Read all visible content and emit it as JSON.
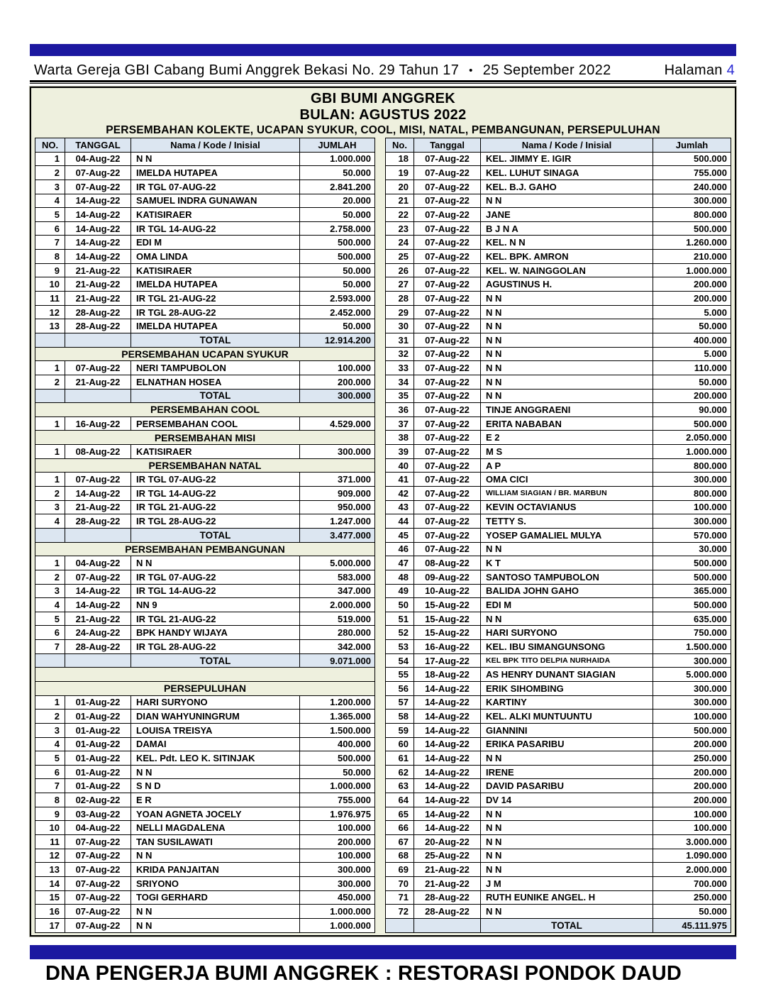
{
  "header": {
    "title": "Warta Gereja GBI Cabang Bumi Anggrek Bekasi No. 29  Tahun 17",
    "separator": "•",
    "date": "25 September 2022",
    "page_label": "Halaman",
    "page_number": "4"
  },
  "footer": {
    "text": "DNA PENGERJA BUMI ANGGREK : RESTORASI PONDOK DAUD"
  },
  "colors": {
    "bar_blue": "#1c18a0",
    "cream": "#eef0de",
    "light_blue": "#dce6f1",
    "page_number_blue": "#2a2ad4"
  },
  "table": {
    "title1": "GBI BUMI ANGGREK",
    "title2": "BULAN: AGUSTUS 2022",
    "title3": "PERSEMBAHAN KOLEKTE, UCAPAN SYUKUR, COOL, MISI, NATAL, PEMBANGUNAN, PERSEPULUHAN",
    "left_headers": [
      "NO.",
      "TANGGAL",
      "Nama / Kode / Inisial",
      "JUMLAH"
    ],
    "right_headers": [
      "No.",
      "Tanggal",
      "Nama / Kode / Inisial",
      "Jumlah"
    ],
    "left_rows": [
      [
        "d",
        "1",
        "04-Aug-22",
        "N N",
        "1.000.000"
      ],
      [
        "d",
        "2",
        "07-Aug-22",
        "IMELDA HUTAPEA",
        "50.000"
      ],
      [
        "d",
        "3",
        "07-Aug-22",
        "IR TGL 07-AUG-22",
        "2.841.200"
      ],
      [
        "d",
        "4",
        "14-Aug-22",
        "SAMUEL INDRA GUNAWAN",
        "20.000"
      ],
      [
        "d",
        "5",
        "14-Aug-22",
        "KATISIRAER",
        "50.000"
      ],
      [
        "d",
        "6",
        "14-Aug-22",
        "IR TGL 14-AUG-22",
        "2.758.000"
      ],
      [
        "d",
        "7",
        "14-Aug-22",
        "EDI M",
        "500.000"
      ],
      [
        "d",
        "8",
        "14-Aug-22",
        "OMA LINDA",
        "500.000"
      ],
      [
        "d",
        "9",
        "21-Aug-22",
        "KATISIRAER",
        "50.000"
      ],
      [
        "d",
        "10",
        "21-Aug-22",
        "IMELDA HUTAPEA",
        "50.000"
      ],
      [
        "d",
        "11",
        "21-Aug-22",
        "IR TGL 21-AUG-22",
        "2.593.000"
      ],
      [
        "d",
        "12",
        "28-Aug-22",
        "IR TGL 28-AUG-22",
        "2.452.000"
      ],
      [
        "d",
        "13",
        "28-Aug-22",
        "IMELDA HUTAPEA",
        "50.000"
      ],
      [
        "t",
        "TOTAL",
        "12.914.200"
      ],
      [
        "s",
        "PERSEMBAHAN UCAPAN SYUKUR"
      ],
      [
        "d",
        "1",
        "07-Aug-22",
        "NERI TAMPUBOLON",
        "100.000"
      ],
      [
        "d",
        "2",
        "21-Aug-22",
        "ELNATHAN HOSEA",
        "200.000"
      ],
      [
        "t",
        "TOTAL",
        "300.000"
      ],
      [
        "s",
        "PERSEMBAHAN COOL"
      ],
      [
        "d",
        "1",
        "16-Aug-22",
        "PERSEMBAHAN COOL",
        "4.529.000"
      ],
      [
        "s",
        "PERSEMBAHAN MISI"
      ],
      [
        "d",
        "1",
        "08-Aug-22",
        "KATISIRAER",
        "300.000"
      ],
      [
        "s",
        "PERSEMBAHAN NATAL"
      ],
      [
        "d",
        "1",
        "07-Aug-22",
        "IR TGL 07-AUG-22",
        "371.000"
      ],
      [
        "d",
        "2",
        "14-Aug-22",
        "IR TGL 14-AUG-22",
        "909.000"
      ],
      [
        "d",
        "3",
        "21-Aug-22",
        "IR TGL 21-AUG-22",
        "950.000"
      ],
      [
        "d",
        "4",
        "28-Aug-22",
        "IR TGL 28-AUG-22",
        "1.247.000"
      ],
      [
        "t",
        "TOTAL",
        "3.477.000"
      ],
      [
        "s",
        "PERSEMBAHAN PEMBANGUNAN"
      ],
      [
        "d",
        "1",
        "04-Aug-22",
        "N N",
        "5.000.000"
      ],
      [
        "d",
        "2",
        "07-Aug-22",
        "IR TGL 07-AUG-22",
        "583.000"
      ],
      [
        "d",
        "3",
        "14-Aug-22",
        "IR TGL 14-AUG-22",
        "347.000"
      ],
      [
        "d",
        "4",
        "14-Aug-22",
        "NN 9",
        "2.000.000"
      ],
      [
        "d",
        "5",
        "21-Aug-22",
        "IR TGL 21-AUG-22",
        "519.000"
      ],
      [
        "d",
        "6",
        "24-Aug-22",
        "BPK HANDY WIJAYA",
        "280.000"
      ],
      [
        "d",
        "7",
        "28-Aug-22",
        "IR TGL 28-AUG-22",
        "342.000"
      ],
      [
        "t",
        "TOTAL",
        "9.071.000"
      ],
      [
        "b"
      ],
      [
        "s",
        "PERSEPULUHAN"
      ],
      [
        "d",
        "1",
        "01-Aug-22",
        "HARI SURYONO",
        "1.200.000"
      ],
      [
        "d",
        "2",
        "01-Aug-22",
        "DIAN WAHYUNINGRUM",
        "1.365.000"
      ],
      [
        "d",
        "3",
        "01-Aug-22",
        "LOUISA TREISYA",
        "1.500.000"
      ],
      [
        "d",
        "4",
        "01-Aug-22",
        "DAMAI",
        "400.000"
      ],
      [
        "d",
        "5",
        "01-Aug-22",
        "KEL. Pdt. LEO K. SITINJAK",
        "500.000"
      ],
      [
        "d",
        "6",
        "01-Aug-22",
        "N N",
        "50.000"
      ],
      [
        "d",
        "7",
        "01-Aug-22",
        "S N D",
        "1.000.000"
      ],
      [
        "d",
        "8",
        "02-Aug-22",
        "E R",
        "755.000"
      ],
      [
        "d",
        "9",
        "03-Aug-22",
        "YOAN AGNETA JOCELY",
        "1.976.975"
      ],
      [
        "d",
        "10",
        "04-Aug-22",
        "NELLI MAGDALENA",
        "100.000"
      ],
      [
        "d",
        "11",
        "07-Aug-22",
        "TAN SUSILAWATI",
        "200.000"
      ],
      [
        "d",
        "12",
        "07-Aug-22",
        "N N",
        "100.000"
      ],
      [
        "d",
        "13",
        "07-Aug-22",
        "KRIDA PANJAITAN",
        "300.000"
      ],
      [
        "d",
        "14",
        "07-Aug-22",
        "SRIYONO",
        "300.000"
      ],
      [
        "d",
        "15",
        "07-Aug-22",
        "TOGI GERHARD",
        "450.000"
      ],
      [
        "d",
        "16",
        "07-Aug-22",
        "N N",
        "1.000.000"
      ],
      [
        "d",
        "17",
        "07-Aug-22",
        "N N",
        "1.000.000"
      ]
    ],
    "right_rows": [
      [
        "d",
        "18",
        "07-Aug-22",
        "KEL. JIMMY E. IGIR",
        "500.000"
      ],
      [
        "d",
        "19",
        "07-Aug-22",
        "KEL. LUHUT SINAGA",
        "755.000"
      ],
      [
        "d",
        "20",
        "07-Aug-22",
        "KEL. B.J. GAHO",
        "240.000"
      ],
      [
        "d",
        "21",
        "07-Aug-22",
        "N N",
        "300.000"
      ],
      [
        "d",
        "22",
        "07-Aug-22",
        "JANE",
        "800.000"
      ],
      [
        "d",
        "23",
        "07-Aug-22",
        "B J N A",
        "500.000"
      ],
      [
        "d",
        "24",
        "07-Aug-22",
        "KEL. N N",
        "1.260.000"
      ],
      [
        "d",
        "25",
        "07-Aug-22",
        "KEL. BPK. AMRON",
        "210.000"
      ],
      [
        "d",
        "26",
        "07-Aug-22",
        "KEL. W. NAINGGOLAN",
        "1.000.000"
      ],
      [
        "d",
        "27",
        "07-Aug-22",
        "AGUSTINUS H.",
        "200.000"
      ],
      [
        "d",
        "28",
        "07-Aug-22",
        "N N",
        "200.000"
      ],
      [
        "d",
        "29",
        "07-Aug-22",
        "N N",
        "5.000"
      ],
      [
        "d",
        "30",
        "07-Aug-22",
        "N N",
        "50.000"
      ],
      [
        "d",
        "31",
        "07-Aug-22",
        "N N",
        "400.000"
      ],
      [
        "d",
        "32",
        "07-Aug-22",
        "N N",
        "5.000"
      ],
      [
        "d",
        "33",
        "07-Aug-22",
        "N N",
        "110.000"
      ],
      [
        "d",
        "34",
        "07-Aug-22",
        "N N",
        "50.000"
      ],
      [
        "d",
        "35",
        "07-Aug-22",
        "N N",
        "200.000"
      ],
      [
        "d",
        "36",
        "07-Aug-22",
        "TINJE ANGGRAENI",
        "90.000"
      ],
      [
        "d",
        "37",
        "07-Aug-22",
        "ERITA NABABAN",
        "500.000"
      ],
      [
        "d",
        "38",
        "07-Aug-22",
        "E 2",
        "2.050.000"
      ],
      [
        "d",
        "39",
        "07-Aug-22",
        "M S",
        "1.000.000"
      ],
      [
        "d",
        "40",
        "07-Aug-22",
        "A P",
        "800.000"
      ],
      [
        "d",
        "41",
        "07-Aug-22",
        "OMA CICI",
        "300.000"
      ],
      [
        "d",
        "42",
        "07-Aug-22",
        "WILLIAM SIAGIAN / BR. MARBUN",
        "800.000"
      ],
      [
        "d",
        "43",
        "07-Aug-22",
        "KEVIN OCTAVIANUS",
        "100.000"
      ],
      [
        "d",
        "44",
        "07-Aug-22",
        "TETTY S.",
        "300.000"
      ],
      [
        "d",
        "45",
        "07-Aug-22",
        "YOSEP GAMALIEL MULYA",
        "570.000"
      ],
      [
        "d",
        "46",
        "07-Aug-22",
        "N N",
        "30.000"
      ],
      [
        "d",
        "47",
        "08-Aug-22",
        "K T",
        "500.000"
      ],
      [
        "d",
        "48",
        "09-Aug-22",
        "SANTOSO TAMPUBOLON",
        "500.000"
      ],
      [
        "d",
        "49",
        "10-Aug-22",
        "BALIDA JOHN GAHO",
        "365.000"
      ],
      [
        "d",
        "50",
        "15-Aug-22",
        "EDI M",
        "500.000"
      ],
      [
        "d",
        "51",
        "15-Aug-22",
        "N N",
        "635.000"
      ],
      [
        "d",
        "52",
        "15-Aug-22",
        "HARI SURYONO",
        "750.000"
      ],
      [
        "d",
        "53",
        "16-Aug-22",
        "KEL. IBU SIMANGUNSONG",
        "1.500.000"
      ],
      [
        "d",
        "54",
        "17-Aug-22",
        "KEL BPK TITO DELPIA NURHAIDA",
        "300.000"
      ],
      [
        "d",
        "55",
        "18-Aug-22",
        "AS HENRY DUNANT SIAGIAN",
        "5.000.000"
      ],
      [
        "d",
        "56",
        "14-Aug-22",
        "ERIK SIHOMBING",
        "300.000"
      ],
      [
        "d",
        "57",
        "14-Aug-22",
        "KARTINY",
        "300.000"
      ],
      [
        "d",
        "58",
        "14-Aug-22",
        "KEL. ALKI MUNTUUNTU",
        "100.000"
      ],
      [
        "d",
        "59",
        "14-Aug-22",
        "GIANNINI",
        "500.000"
      ],
      [
        "d",
        "60",
        "14-Aug-22",
        "ERIKA PASARIBU",
        "200.000"
      ],
      [
        "d",
        "61",
        "14-Aug-22",
        "N N",
        "250.000"
      ],
      [
        "d",
        "62",
        "14-Aug-22",
        "IRENE",
        "200.000"
      ],
      [
        "d",
        "63",
        "14-Aug-22",
        "DAVID PASARIBU",
        "200.000"
      ],
      [
        "d",
        "64",
        "14-Aug-22",
        "DV 14",
        "200.000"
      ],
      [
        "d",
        "65",
        "14-Aug-22",
        "N N",
        "100.000"
      ],
      [
        "d",
        "66",
        "14-Aug-22",
        "N N",
        "100.000"
      ],
      [
        "d",
        "67",
        "20-Aug-22",
        "N N",
        "3.000.000"
      ],
      [
        "d",
        "68",
        "25-Aug-22",
        "N N",
        "1.090.000"
      ],
      [
        "d",
        "69",
        "21-Aug-22",
        "N N",
        "2.000.000"
      ],
      [
        "d",
        "70",
        "21-Aug-22",
        "J M",
        "700.000"
      ],
      [
        "d",
        "71",
        "28-Aug-22",
        "RUTH EUNIKE ANGEL. H",
        "250.000"
      ],
      [
        "d",
        "72",
        "28-Aug-22",
        "N N",
        "50.000"
      ],
      [
        "t",
        "TOTAL",
        "45.111.975"
      ]
    ]
  }
}
